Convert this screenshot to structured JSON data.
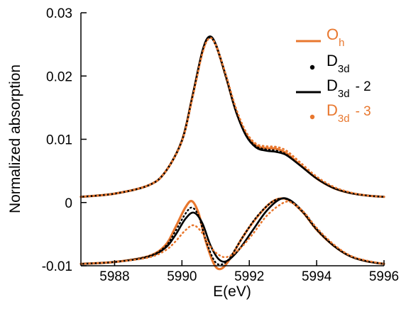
{
  "chart_data": {
    "type": "line",
    "title": "",
    "xlabel": "E(eV)",
    "ylabel": "Normalized absorption",
    "xlim": [
      5987,
      5996
    ],
    "ylim": [
      -0.01,
      0.03
    ],
    "x_ticks": [
      5988,
      5990,
      5992,
      5994,
      5996
    ],
    "x_tick_labels": [
      "5988",
      "5990",
      "5992",
      "5994",
      "5996"
    ],
    "y_ticks": [
      -0.01,
      0,
      0.01,
      0.02,
      0.03
    ],
    "y_tick_labels": [
      "-0.01",
      "0",
      "0.01",
      "0.02",
      "0.03"
    ],
    "grid": false,
    "legend_position": "top-right",
    "legend": [
      {
        "main": "O",
        "sub": "h",
        "suffix": "",
        "color": "#e8772e",
        "marker": "line"
      },
      {
        "main": "D",
        "sub": "3d",
        "suffix": "",
        "color": "#000000",
        "marker": "dot"
      },
      {
        "main": "D",
        "sub": "3d",
        "suffix": "- 2",
        "color": "#000000",
        "marker": "line"
      },
      {
        "main": "D",
        "sub": "3d",
        "suffix": "- 3",
        "color": "#e8772e",
        "marker": "dot"
      }
    ],
    "series": [
      {
        "group": "absorption",
        "style": "orange-solid",
        "color": "#e8772e",
        "points": [
          [
            5987,
            0.0009
          ],
          [
            5988,
            0.0014
          ],
          [
            5989,
            0.0027
          ],
          [
            5989.5,
            0.0048
          ],
          [
            5990,
            0.0098
          ],
          [
            5990.3,
            0.0165
          ],
          [
            5990.6,
            0.0237
          ],
          [
            5990.8,
            0.0261
          ],
          [
            5991,
            0.025
          ],
          [
            5991.3,
            0.02
          ],
          [
            5991.6,
            0.0145
          ],
          [
            5991.9,
            0.0108
          ],
          [
            5992.2,
            0.009
          ],
          [
            5992.5,
            0.0086
          ],
          [
            5992.8,
            0.0085
          ],
          [
            5993.1,
            0.0078
          ],
          [
            5993.5,
            0.006
          ],
          [
            5994,
            0.0038
          ],
          [
            5994.5,
            0.0023
          ],
          [
            5995,
            0.0015
          ],
          [
            5995.5,
            0.0011
          ],
          [
            5996,
            0.0009
          ]
        ]
      },
      {
        "group": "absorption",
        "style": "black-dotted",
        "color": "#000000",
        "points": [
          [
            5987,
            0.0009
          ],
          [
            5988,
            0.0014
          ],
          [
            5989,
            0.0027
          ],
          [
            5989.5,
            0.0048
          ],
          [
            5990,
            0.0097
          ],
          [
            5990.3,
            0.0164
          ],
          [
            5990.6,
            0.0236
          ],
          [
            5990.8,
            0.026
          ],
          [
            5991,
            0.0249
          ],
          [
            5991.3,
            0.0199
          ],
          [
            5991.6,
            0.0144
          ],
          [
            5991.9,
            0.0107
          ],
          [
            5992.2,
            0.0089
          ],
          [
            5992.5,
            0.0084
          ],
          [
            5992.8,
            0.0082
          ],
          [
            5993.1,
            0.0076
          ],
          [
            5993.5,
            0.0059
          ],
          [
            5994,
            0.0038
          ],
          [
            5994.5,
            0.0023
          ],
          [
            5995,
            0.0015
          ],
          [
            5995.5,
            0.0011
          ],
          [
            5996,
            0.0009
          ]
        ]
      },
      {
        "group": "absorption",
        "style": "black-solid",
        "color": "#000000",
        "points": [
          [
            5987,
            0.0009
          ],
          [
            5988,
            0.0014
          ],
          [
            5989,
            0.0027
          ],
          [
            5989.5,
            0.0048
          ],
          [
            5990,
            0.0098
          ],
          [
            5990.3,
            0.0165
          ],
          [
            5990.6,
            0.0238
          ],
          [
            5990.8,
            0.0262
          ],
          [
            5991,
            0.0251
          ],
          [
            5991.3,
            0.0201
          ],
          [
            5991.6,
            0.0145
          ],
          [
            5991.9,
            0.0106
          ],
          [
            5992.2,
            0.0087
          ],
          [
            5992.5,
            0.0082
          ],
          [
            5992.8,
            0.008
          ],
          [
            5993.1,
            0.0075
          ],
          [
            5993.5,
            0.0059
          ],
          [
            5994,
            0.0038
          ],
          [
            5994.5,
            0.0023
          ],
          [
            5995,
            0.0015
          ],
          [
            5995.5,
            0.0011
          ],
          [
            5996,
            0.0009
          ]
        ]
      },
      {
        "group": "absorption",
        "style": "orange-dotted",
        "color": "#e8772e",
        "points": [
          [
            5987,
            0.0009
          ],
          [
            5988,
            0.0014
          ],
          [
            5989,
            0.0027
          ],
          [
            5989.5,
            0.0048
          ],
          [
            5990,
            0.0097
          ],
          [
            5990.3,
            0.0162
          ],
          [
            5990.6,
            0.0234
          ],
          [
            5990.8,
            0.0259
          ],
          [
            5991,
            0.025
          ],
          [
            5991.3,
            0.0203
          ],
          [
            5991.6,
            0.015
          ],
          [
            5991.9,
            0.0112
          ],
          [
            5992.2,
            0.0093
          ],
          [
            5992.5,
            0.0089
          ],
          [
            5992.8,
            0.0088
          ],
          [
            5993.1,
            0.0082
          ],
          [
            5993.5,
            0.0064
          ],
          [
            5994,
            0.0041
          ],
          [
            5994.5,
            0.0025
          ],
          [
            5995,
            0.0016
          ],
          [
            5995.5,
            0.0011
          ],
          [
            5996,
            0.0009
          ]
        ]
      },
      {
        "group": "derivative",
        "style": "orange-solid",
        "color": "#e8772e",
        "points": [
          [
            5987,
            -0.0097
          ],
          [
            5988,
            -0.0094
          ],
          [
            5989,
            -0.0085
          ],
          [
            5989.5,
            -0.0068
          ],
          [
            5989.8,
            -0.004
          ],
          [
            5990.1,
            -0.0008
          ],
          [
            5990.3,
            0.0002
          ],
          [
            5990.5,
            -0.0018
          ],
          [
            5990.7,
            -0.006
          ],
          [
            5990.95,
            -0.0097
          ],
          [
            5991.15,
            -0.0105
          ],
          [
            5991.4,
            -0.0091
          ],
          [
            5991.8,
            -0.0055
          ],
          [
            5992.2,
            -0.0025
          ],
          [
            5992.6,
            -0.0002
          ],
          [
            5992.9,
            0.0006
          ],
          [
            5993.2,
            0.0003
          ],
          [
            5993.6,
            -0.0016
          ],
          [
            5994,
            -0.0043
          ],
          [
            5994.5,
            -0.0068
          ],
          [
            5995,
            -0.0085
          ],
          [
            5995.5,
            -0.0093
          ],
          [
            5996,
            -0.0097
          ]
        ]
      },
      {
        "group": "derivative",
        "style": "black-dotted",
        "color": "#000000",
        "points": [
          [
            5987,
            -0.0097
          ],
          [
            5988,
            -0.0094
          ],
          [
            5989,
            -0.0085
          ],
          [
            5989.5,
            -0.007
          ],
          [
            5989.8,
            -0.0046
          ],
          [
            5990.1,
            -0.0018
          ],
          [
            5990.3,
            -0.0008
          ],
          [
            5990.5,
            -0.0022
          ],
          [
            5990.7,
            -0.0058
          ],
          [
            5990.95,
            -0.0091
          ],
          [
            5991.15,
            -0.0098
          ],
          [
            5991.4,
            -0.0089
          ],
          [
            5991.8,
            -0.0055
          ],
          [
            5992.2,
            -0.0024
          ],
          [
            5992.6,
            -0.0002
          ],
          [
            5992.9,
            0.0006
          ],
          [
            5993.2,
            0.0003
          ],
          [
            5993.6,
            -0.0016
          ],
          [
            5994,
            -0.0043
          ],
          [
            5994.5,
            -0.0068
          ],
          [
            5995,
            -0.0085
          ],
          [
            5995.5,
            -0.0093
          ],
          [
            5996,
            -0.0097
          ]
        ]
      },
      {
        "group": "derivative",
        "style": "black-solid",
        "color": "#000000",
        "points": [
          [
            5987,
            -0.0097
          ],
          [
            5988,
            -0.0094
          ],
          [
            5989,
            -0.0086
          ],
          [
            5989.5,
            -0.0072
          ],
          [
            5989.8,
            -0.0052
          ],
          [
            5990.1,
            -0.0026
          ],
          [
            5990.35,
            -0.0016
          ],
          [
            5990.6,
            -0.0032
          ],
          [
            5990.85,
            -0.0068
          ],
          [
            5991.1,
            -0.009
          ],
          [
            5991.35,
            -0.0092
          ],
          [
            5991.7,
            -0.0074
          ],
          [
            5992.1,
            -0.0044
          ],
          [
            5992.5,
            -0.0014
          ],
          [
            5992.9,
            0.0005
          ],
          [
            5993.2,
            0.0004
          ],
          [
            5993.6,
            -0.0015
          ],
          [
            5994,
            -0.0042
          ],
          [
            5994.5,
            -0.0068
          ],
          [
            5995,
            -0.0085
          ],
          [
            5995.5,
            -0.0093
          ],
          [
            5996,
            -0.0097
          ]
        ]
      },
      {
        "group": "derivative",
        "style": "orange-dotted",
        "color": "#e8772e",
        "points": [
          [
            5987,
            -0.0097
          ],
          [
            5988,
            -0.0094
          ],
          [
            5989,
            -0.0087
          ],
          [
            5989.5,
            -0.0076
          ],
          [
            5989.8,
            -0.0062
          ],
          [
            5990.1,
            -0.0044
          ],
          [
            5990.35,
            -0.0036
          ],
          [
            5990.6,
            -0.0048
          ],
          [
            5990.85,
            -0.007
          ],
          [
            5991.1,
            -0.0083
          ],
          [
            5991.35,
            -0.0086
          ],
          [
            5991.7,
            -0.0074
          ],
          [
            5992.1,
            -0.005
          ],
          [
            5992.5,
            -0.0022
          ],
          [
            5992.9,
            -0.0004
          ],
          [
            5993.2,
            0.0001
          ],
          [
            5993.6,
            -0.0014
          ],
          [
            5994,
            -0.004
          ],
          [
            5994.5,
            -0.0066
          ],
          [
            5995,
            -0.0084
          ],
          [
            5995.5,
            -0.0092
          ],
          [
            5996,
            -0.0097
          ]
        ]
      }
    ]
  }
}
